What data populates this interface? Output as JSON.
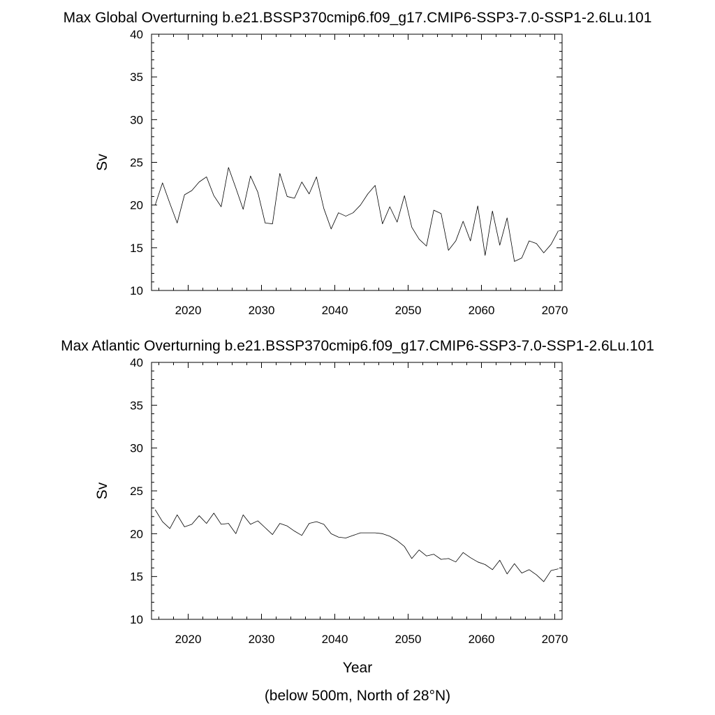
{
  "figure": {
    "xlabel": "Year",
    "footnote": "(below 500m, North of 28°N)"
  },
  "chart_data": [
    {
      "type": "line",
      "title": "Max Global Overturning b.e21.BSSP370cmip6.f09_g17.CMIP6-SSP3-7.0-SSP1-2.6Lu.101",
      "xlabel": "",
      "ylabel": "Sv",
      "xlim": [
        2015,
        2071
      ],
      "ylim": [
        10,
        40
      ],
      "xticks": [
        2020,
        2030,
        2040,
        2050,
        2060,
        2070
      ],
      "yticks": [
        10,
        15,
        20,
        25,
        30,
        35,
        40
      ],
      "grid": false,
      "series": [
        {
          "name": "Max Global Overturning",
          "x": [
            2015.5,
            2016.5,
            2017.5,
            2018.5,
            2019.5,
            2020.5,
            2021.5,
            2022.5,
            2023.5,
            2024.5,
            2025.5,
            2026.5,
            2027.5,
            2028.5,
            2029.5,
            2030.5,
            2031.5,
            2032.5,
            2033.5,
            2034.5,
            2035.5,
            2036.5,
            2037.5,
            2038.5,
            2039.5,
            2040.5,
            2041.5,
            2042.5,
            2043.5,
            2044.5,
            2045.5,
            2046.5,
            2047.5,
            2048.5,
            2049.5,
            2050.5,
            2051.5,
            2052.5,
            2053.5,
            2054.5,
            2055.5,
            2056.5,
            2057.5,
            2058.5,
            2059.5,
            2060.5,
            2061.5,
            2062.5,
            2063.5,
            2064.5,
            2065.5,
            2066.5,
            2067.5,
            2068.5,
            2069.5,
            2070.5
          ],
          "values": [
            20.0,
            22.6,
            20.2,
            17.9,
            21.2,
            21.7,
            22.7,
            23.3,
            21.1,
            19.8,
            24.4,
            22.0,
            19.5,
            23.4,
            21.5,
            17.9,
            17.8,
            23.7,
            21.0,
            20.8,
            22.7,
            21.3,
            23.3,
            19.6,
            17.2,
            19.1,
            18.7,
            19.1,
            20.0,
            21.3,
            22.3,
            17.8,
            19.8,
            18.0,
            21.1,
            17.4,
            16.0,
            15.2,
            19.4,
            19.0,
            14.7,
            15.8,
            18.1,
            15.8,
            19.9,
            14.1,
            19.3,
            15.3,
            18.5,
            13.4,
            13.8,
            15.8,
            15.5,
            14.4,
            15.4,
            17.0
          ]
        }
      ]
    },
    {
      "type": "line",
      "title": "Max Atlantic Overturning b.e21.BSSP370cmip6.f09_g17.CMIP6-SSP3-7.0-SSP1-2.6Lu.101",
      "xlabel": "Year",
      "ylabel": "Sv",
      "xlim": [
        2015,
        2071
      ],
      "ylim": [
        10,
        40
      ],
      "xticks": [
        2020,
        2030,
        2040,
        2050,
        2060,
        2070
      ],
      "yticks": [
        10,
        15,
        20,
        25,
        30,
        35,
        40
      ],
      "grid": false,
      "series": [
        {
          "name": "Max Atlantic Overturning",
          "x": [
            2015.5,
            2016.5,
            2017.5,
            2018.5,
            2019.5,
            2020.5,
            2021.5,
            2022.5,
            2023.5,
            2024.5,
            2025.5,
            2026.5,
            2027.5,
            2028.5,
            2029.5,
            2030.5,
            2031.5,
            2032.5,
            2033.5,
            2034.5,
            2035.5,
            2036.5,
            2037.5,
            2038.5,
            2039.5,
            2040.5,
            2041.5,
            2042.5,
            2043.5,
            2044.5,
            2045.5,
            2046.5,
            2047.5,
            2048.5,
            2049.5,
            2050.5,
            2051.5,
            2052.5,
            2053.5,
            2054.5,
            2055.5,
            2056.5,
            2057.5,
            2058.5,
            2059.5,
            2060.5,
            2061.5,
            2062.5,
            2063.5,
            2064.5,
            2065.5,
            2066.5,
            2067.5,
            2068.5,
            2069.5,
            2070.5
          ],
          "values": [
            22.8,
            21.4,
            20.6,
            22.2,
            20.8,
            21.1,
            22.1,
            21.2,
            22.4,
            21.1,
            21.2,
            20.0,
            22.2,
            21.1,
            21.5,
            20.7,
            19.9,
            21.2,
            20.9,
            20.3,
            19.8,
            21.2,
            21.4,
            21.1,
            20.0,
            19.6,
            19.5,
            19.8,
            20.1,
            20.1,
            20.1,
            20.0,
            19.7,
            19.2,
            18.5,
            17.1,
            18.1,
            17.4,
            17.6,
            17.0,
            17.1,
            16.7,
            17.8,
            17.2,
            16.7,
            16.4,
            15.8,
            16.9,
            15.3,
            16.5,
            15.4,
            15.8,
            15.2,
            14.4,
            15.7,
            15.9
          ]
        }
      ]
    }
  ]
}
